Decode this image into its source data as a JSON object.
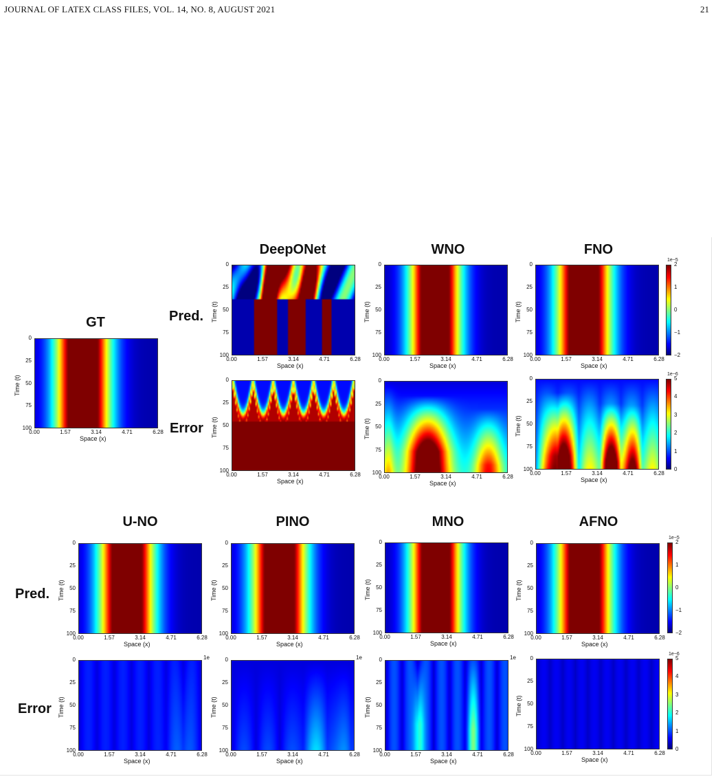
{
  "header": {
    "journal": "JOURNAL OF LATEX CLASS FILES, VOL. 14, NO. 8, AUGUST 2021",
    "page": "21"
  },
  "labels": {
    "pred": "Pred.",
    "error": "Error"
  },
  "axes": {
    "x_label": "Space (x)",
    "y_label": "Time (t)",
    "x_ticks": [
      "0.00",
      "1.57",
      "3.14",
      "4.71",
      "6.28"
    ],
    "y_ticks": [
      "0",
      "25",
      "50",
      "75",
      "100"
    ]
  },
  "top_section": {
    "gt_title": "GT",
    "models": [
      "DeepONet",
      "WNO",
      "FNO"
    ],
    "pred_colorbar": {
      "exponent": "1e−5",
      "ticks": [
        "2",
        "1",
        "0",
        "−1",
        "−2"
      ]
    },
    "error_colorbar": {
      "exponent": "1e−6",
      "ticks": [
        "5",
        "4",
        "3",
        "2",
        "1",
        "0"
      ]
    }
  },
  "bottom_section": {
    "models": [
      "U-NO",
      "PINO",
      "MNO",
      "AFNO"
    ],
    "pred_colorbar": {
      "exponent": "1e−5",
      "ticks": [
        "2",
        "1",
        "0",
        "−1",
        "−2"
      ]
    },
    "error_colorbar": {
      "exponent": "1e−6",
      "ticks": [
        "5",
        "4",
        "3",
        "2",
        "1",
        "0"
      ]
    },
    "cropped_exponent": "1e"
  },
  "chart_data": {
    "type": "heatmap",
    "x_range": [
      0,
      6.28
    ],
    "y_range": [
      0,
      100
    ],
    "colormap": "jet",
    "pred_range": [
      -2e-05,
      2e-05
    ],
    "error_range": [
      0,
      5e-06
    ]
  }
}
